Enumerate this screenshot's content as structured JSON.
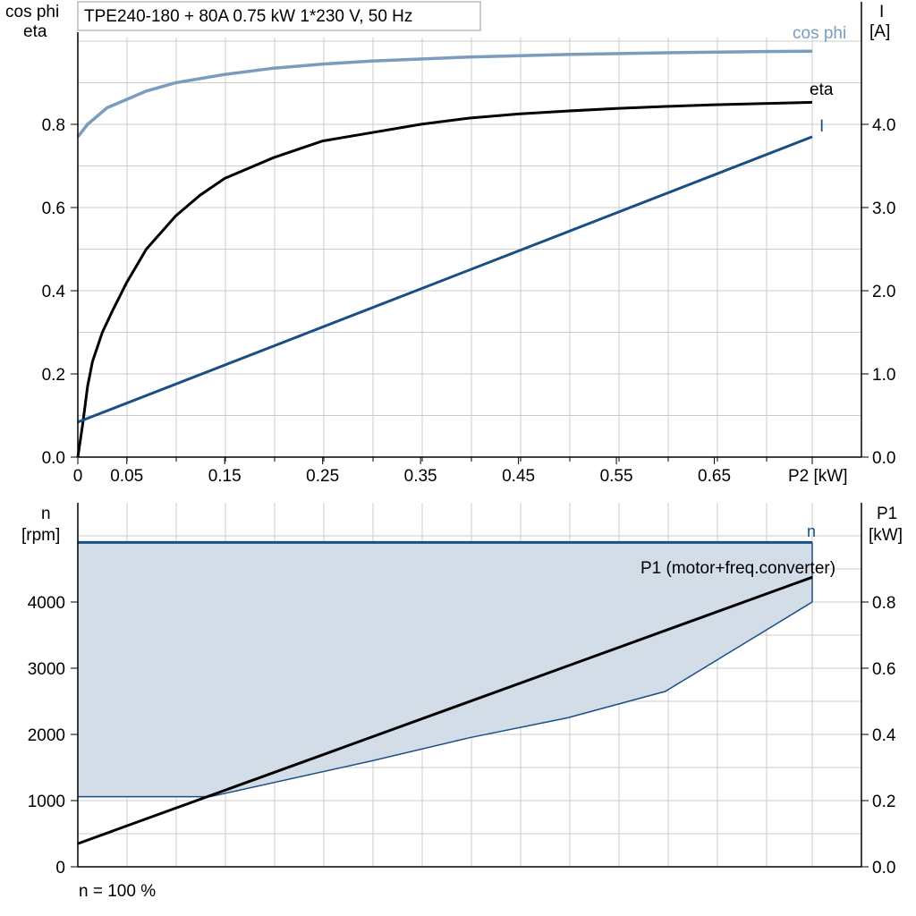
{
  "title": "TPE240-180 + 80A   0.75 kW   1*230 V, 50 Hz",
  "footer": "n = 100 %",
  "chart_data": [
    {
      "type": "line",
      "id": "upper",
      "x_ticks": [
        "0",
        "0.05",
        "0.15",
        "0.25",
        "0.35",
        "0.45",
        "0.55",
        "0.65",
        "P2 [kW]"
      ],
      "x_tick_values": [
        0,
        0.05,
        0.15,
        0.25,
        0.35,
        0.45,
        0.55,
        0.65,
        0.75
      ],
      "xlim": [
        0,
        0.8
      ],
      "y_left": {
        "label1": "cos phi",
        "label2": "eta",
        "ticks": [
          "0.0",
          "0.2",
          "0.4",
          "0.6",
          "0.8"
        ],
        "tick_values": [
          0,
          0.2,
          0.4,
          0.6,
          0.8
        ],
        "lim": [
          0,
          1.05
        ]
      },
      "y_right": {
        "label1": "I",
        "label2": "[A]",
        "ticks": [
          "0.0",
          "1.0",
          "2.0",
          "3.0",
          "4.0"
        ],
        "tick_values": [
          0,
          1,
          2,
          3,
          4
        ],
        "lim": [
          0,
          5.25
        ]
      },
      "grid": true,
      "series": [
        {
          "name": "cos phi",
          "axis": "left",
          "color": "#7a9cbd",
          "x": [
            0,
            0.01,
            0.02,
            0.03,
            0.05,
            0.07,
            0.1,
            0.15,
            0.2,
            0.25,
            0.3,
            0.4,
            0.5,
            0.6,
            0.7,
            0.75
          ],
          "y": [
            0.77,
            0.8,
            0.82,
            0.84,
            0.86,
            0.88,
            0.9,
            0.92,
            0.935,
            0.945,
            0.952,
            0.962,
            0.968,
            0.972,
            0.975,
            0.976
          ]
        },
        {
          "name": "eta",
          "axis": "left",
          "color": "#000000",
          "x": [
            0,
            0.005,
            0.01,
            0.015,
            0.025,
            0.035,
            0.05,
            0.07,
            0.1,
            0.125,
            0.15,
            0.2,
            0.25,
            0.3,
            0.35,
            0.4,
            0.45,
            0.5,
            0.55,
            0.6,
            0.65,
            0.7,
            0.75
          ],
          "y": [
            0,
            0.08,
            0.17,
            0.23,
            0.3,
            0.35,
            0.42,
            0.5,
            0.58,
            0.63,
            0.67,
            0.72,
            0.76,
            0.78,
            0.8,
            0.815,
            0.825,
            0.832,
            0.838,
            0.843,
            0.847,
            0.85,
            0.853
          ]
        },
        {
          "name": "I",
          "axis": "right",
          "color": "#1a4f85",
          "x": [
            0,
            0.75
          ],
          "y": [
            0.42,
            3.85
          ]
        }
      ]
    },
    {
      "type": "area",
      "id": "lower",
      "xlim": [
        0,
        0.8
      ],
      "y_left": {
        "label1": "n",
        "label2": "[rpm]",
        "ticks": [
          "0",
          "1000",
          "2000",
          "3000",
          "4000"
        ],
        "tick_values": [
          0,
          1000,
          2000,
          3000,
          4000
        ],
        "lim": [
          0,
          5500
        ]
      },
      "y_right": {
        "label1": "P1",
        "label2": "[kW]",
        "ticks": [
          "0.0",
          "0.2",
          "0.4",
          "0.6",
          "0.8"
        ],
        "tick_values": [
          0,
          0.2,
          0.4,
          0.6,
          0.8
        ],
        "lim": [
          0,
          1.1
        ]
      },
      "grid": true,
      "series": [
        {
          "name": "n",
          "axis": "left",
          "color": "#1a4f85",
          "fill": "#d2dde8",
          "upper_x": [
            0,
            0.75
          ],
          "upper_y": [
            4900,
            4900
          ],
          "lower_x": [
            0,
            0.135,
            0.3,
            0.4,
            0.5,
            0.6,
            0.75
          ],
          "lower_y": [
            1060,
            1060,
            1600,
            1950,
            2250,
            2650,
            4000
          ]
        },
        {
          "name": "P1 (motor+freq.converter)",
          "axis": "right",
          "color": "#000000",
          "x": [
            0,
            0.75
          ],
          "y": [
            0.07,
            0.875
          ]
        }
      ]
    }
  ]
}
